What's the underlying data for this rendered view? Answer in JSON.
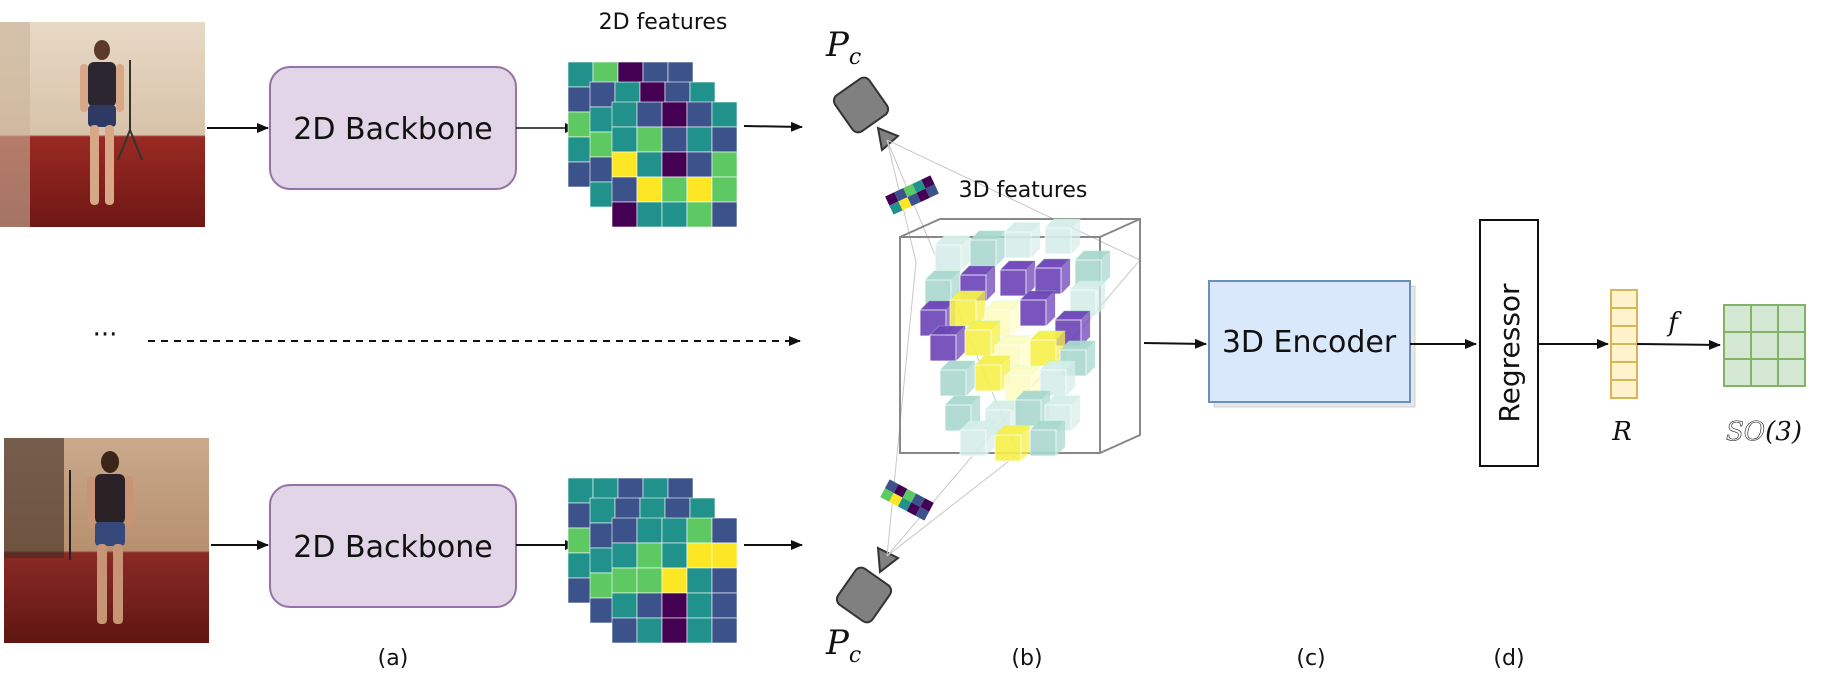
{
  "labels": {
    "features_2d": "2D features",
    "features_3d": "3D features",
    "camera_top": "P",
    "camera_bottom": "P",
    "camera_sub": "c",
    "ellipsis": "···",
    "rotation": "R",
    "so3_bb": "SO",
    "so3_arg": "(3)",
    "function": "f"
  },
  "boxes": {
    "backbone_top": "2D Backbone",
    "backbone_bottom": "2D Backbone",
    "encoder": "3D Encoder",
    "regressor": "Regressor"
  },
  "panels": [
    "(a)",
    "(b)",
    "(c)",
    "(d)"
  ],
  "colors": {
    "backbone_fill": "#e1d5e7",
    "backbone_stroke": "#9673a6",
    "encoder_fill": "#dae8fc",
    "encoder_stroke": "#6c8ebf",
    "vector_fill": "#fff2cc",
    "vector_stroke": "#d6b656",
    "matrix_fill": "#d5e8d4",
    "matrix_stroke": "#82b366",
    "camera": "#808080"
  },
  "featuremaps": {
    "palette": [
      "#440154",
      "#3b528b",
      "#21918c",
      "#5ec962",
      "#fde725"
    ],
    "top_front": [
      [
        2,
        1,
        0,
        1,
        2
      ],
      [
        2,
        3,
        1,
        2,
        1
      ],
      [
        4,
        2,
        0,
        1,
        3
      ],
      [
        1,
        4,
        3,
        4,
        3
      ],
      [
        0,
        2,
        2,
        3,
        1
      ]
    ],
    "top_mid": [
      [
        1,
        2,
        0,
        1,
        2
      ],
      [
        2,
        1,
        3,
        0,
        1
      ],
      [
        3,
        2,
        1,
        2,
        4
      ],
      [
        1,
        3,
        2,
        1,
        2
      ],
      [
        2,
        1,
        3,
        2,
        1
      ]
    ],
    "top_back": [
      [
        2,
        3,
        0,
        1,
        1
      ],
      [
        1,
        2,
        1,
        2,
        2
      ],
      [
        3,
        1,
        2,
        1,
        3
      ],
      [
        2,
        2,
        3,
        1,
        2
      ],
      [
        1,
        2,
        1,
        3,
        2
      ]
    ],
    "bot_front": [
      [
        1,
        2,
        2,
        3,
        1
      ],
      [
        2,
        3,
        2,
        4,
        4
      ],
      [
        3,
        3,
        4,
        2,
        1
      ],
      [
        2,
        1,
        0,
        2,
        1
      ],
      [
        1,
        2,
        0,
        2,
        1
      ]
    ],
    "bot_mid": [
      [
        2,
        1,
        2,
        1,
        2
      ],
      [
        1,
        2,
        3,
        2,
        1
      ],
      [
        2,
        3,
        1,
        2,
        3
      ],
      [
        3,
        2,
        2,
        1,
        2
      ],
      [
        1,
        2,
        1,
        2,
        1
      ]
    ],
    "bot_back": [
      [
        2,
        2,
        1,
        2,
        1
      ],
      [
        1,
        2,
        2,
        3,
        1
      ],
      [
        3,
        4,
        2,
        1,
        2
      ],
      [
        2,
        1,
        3,
        2,
        2
      ],
      [
        1,
        2,
        1,
        2,
        1
      ]
    ]
  },
  "voxels": {
    "teal_light": "#d7eeea",
    "teal_mid": "#a9d8cf",
    "purple": "#6d43b8",
    "yellow": "#f7f04a",
    "white_yellow": "#fdfcc4"
  }
}
